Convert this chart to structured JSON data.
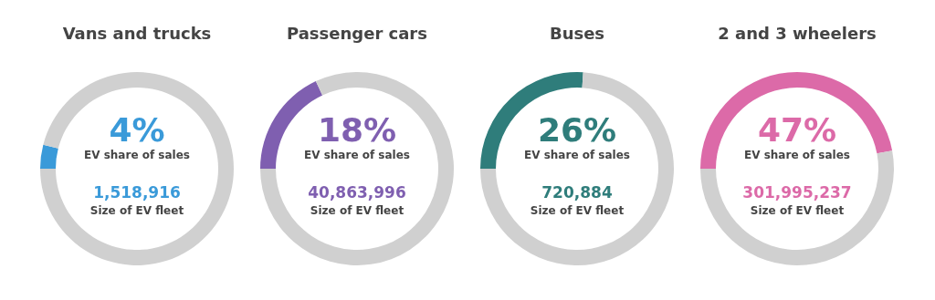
{
  "chart_data": [
    {
      "type": "donut",
      "title": "Vans and trucks",
      "categories": [
        null,
        null
      ],
      "values": [
        4,
        96
      ],
      "colors": [
        "#3a9ad9",
        "#d0d0d0"
      ],
      "annotations": [
        "4%",
        "EV share of sales",
        "1,518,916",
        "Size of EV fleet"
      ]
    },
    {
      "type": "donut",
      "title": "Passenger cars",
      "categories": [
        null,
        null
      ],
      "values": [
        18,
        82
      ],
      "colors": [
        "#7f5fb0",
        "#d0d0d0"
      ],
      "annotations": [
        "18%",
        "EV share of sales",
        "40,863,996",
        "Size of EV fleet"
      ]
    },
    {
      "type": "donut",
      "title": "Buses",
      "categories": [
        null,
        null
      ],
      "values": [
        26,
        74
      ],
      "colors": [
        "#2f7d7b",
        "#d0d0d0"
      ],
      "annotations": [
        "26%",
        "EV share of sales",
        "720,884",
        "Size of EV fleet"
      ]
    },
    {
      "type": "donut",
      "title": "2 and 3 wheelers",
      "categories": [
        null,
        null
      ],
      "values": [
        47,
        53
      ],
      "colors": [
        "#dc6aa8",
        "#d0d0d0"
      ],
      "annotations": [
        "47%",
        "EV share of sales",
        "301,995,237",
        "Size of EV fleet"
      ]
    }
  ]
}
